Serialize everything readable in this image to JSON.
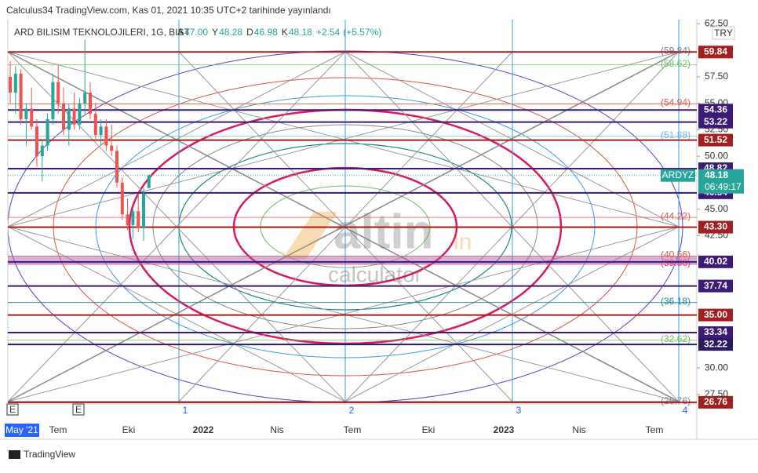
{
  "header": {
    "publisher": "Calculus34 TradingView.com, Kas 01, 2021 10:35 UTC+2 tarihinde yayınlandı"
  },
  "chart_data": {
    "type": "candlestick",
    "symbol": "ARD BILISIM TEKNOLOJILERI, 1G, BIST",
    "ohlc": [
      {
        "key": "A",
        "value": 47,
        "label": "47.00"
      },
      {
        "key": "Y",
        "value": 48.28,
        "label": "48.28"
      },
      {
        "key": "D",
        "value": 46.98,
        "label": "46.98"
      },
      {
        "key": "K",
        "value": 48.18,
        "label": "48.18"
      }
    ],
    "change": {
      "value": 2.54,
      "label": "+2.54"
    },
    "change_pct": {
      "value": 5.57,
      "label": "(+5.57%)"
    },
    "currency": "TRY",
    "ylim": [
      26.6,
      62.9
    ],
    "yticks": [
      {
        "value": 62.5,
        "label": "62.50"
      },
      {
        "value": 57.5,
        "label": "57.50"
      },
      {
        "value": 55,
        "label": "55.00"
      },
      {
        "value": 52.5,
        "label": "52.50"
      },
      {
        "value": 50,
        "label": "50.00"
      },
      {
        "value": 45,
        "label": "45.00"
      },
      {
        "value": 42.5,
        "label": "42.50"
      },
      {
        "value": 30,
        "label": "30.00"
      },
      {
        "value": 27.5,
        "label": "27.50"
      }
    ],
    "x_labels": [
      "May '21",
      "Tem",
      "Eki",
      "2022",
      "Nis",
      "Tem",
      "Eki",
      "2023",
      "Nis",
      "Tem"
    ],
    "event_markers": [
      "E",
      "E"
    ],
    "cycle_labels": [
      "1",
      "2",
      "3",
      "4"
    ],
    "up_color": "#26a69a",
    "down_color": "#ef5350",
    "candles": [
      [
        57.5,
        59,
        55,
        56
      ],
      [
        56,
        58.5,
        54,
        57.8
      ],
      [
        57.8,
        58.2,
        53,
        53.5
      ],
      [
        53.5,
        55,
        51,
        54.5
      ],
      [
        54.5,
        56.5,
        52.5,
        52.8
      ],
      [
        52.8,
        53.5,
        49,
        50
      ],
      [
        50,
        51.5,
        47.6,
        51
      ],
      [
        51,
        54,
        50.5,
        53.5
      ],
      [
        53.5,
        57.8,
        53,
        57
      ],
      [
        57,
        58.6,
        54,
        55
      ],
      [
        55,
        56.5,
        52,
        52.5
      ],
      [
        52.5,
        55,
        51,
        54.5
      ],
      [
        54.5,
        56,
        52.5,
        53
      ],
      [
        53,
        55.5,
        52.5,
        55
      ],
      [
        55,
        61,
        54,
        56
      ],
      [
        56,
        57,
        53.5,
        54
      ],
      [
        54,
        55,
        51.5,
        52
      ],
      [
        52,
        53.5,
        51,
        52.8
      ],
      [
        52.8,
        53.5,
        50.5,
        51
      ],
      [
        51,
        53,
        50,
        50.5
      ],
      [
        50.5,
        51,
        47,
        47.5
      ],
      [
        47.5,
        48,
        44,
        44.5
      ],
      [
        44.5,
        46,
        43,
        43.5
      ],
      [
        43.5,
        45,
        42.2,
        44.8
      ],
      [
        44.8,
        46.5,
        42.8,
        43.2
      ],
      [
        43.2,
        47,
        42,
        46.5
      ],
      [
        47,
        48.28,
        46.98,
        48.18
      ]
    ],
    "levels": [
      {
        "value": 59.84,
        "label": "59.84",
        "color": "#a31f1f"
      },
      {
        "value": 54.36,
        "label": "54.36",
        "color": "#3d1a78"
      },
      {
        "value": 53.22,
        "label": "53.22",
        "color": "#3d1a78"
      },
      {
        "value": 51.52,
        "label": "51.52",
        "color": "#a31f1f"
      },
      {
        "value": 48.82,
        "label": "48.82",
        "color": "#3d1a78"
      },
      {
        "value": 46.54,
        "label": "46.54",
        "color": "#3d1a78"
      },
      {
        "value": 43.3,
        "label": "43.30",
        "color": "#a31f1f"
      },
      {
        "value": 40.02,
        "label": "40.02",
        "color": "#3d1a78"
      },
      {
        "value": 37.74,
        "label": "37.74",
        "color": "#3d1a78"
      },
      {
        "value": 35,
        "label": "35.00",
        "color": "#a31f1f"
      },
      {
        "value": 33.34,
        "label": "33.34",
        "color": "#3d1a78"
      },
      {
        "value": 32.22,
        "label": "32.22",
        "color": "#2a1a5e"
      },
      {
        "value": 26.76,
        "label": "26.76",
        "color": "#a31f1f"
      }
    ],
    "fib_labels": [
      {
        "value": 59.84,
        "label": "(59.84)",
        "color": "#6b7fa3"
      },
      {
        "value": 58.62,
        "label": "(58.62)",
        "color": "#6fbf5f"
      },
      {
        "value": 54.94,
        "label": "(54.94)",
        "color": "#e05a4a"
      },
      {
        "value": 51.88,
        "label": "(51.88)",
        "color": "#6fb6e8"
      },
      {
        "value": 44.22,
        "label": "(44.22)",
        "color": "#e05a4a"
      },
      {
        "value": 40.56,
        "label": "(40.56)",
        "color": "#e05a4a"
      },
      {
        "value": 39.8,
        "label": "(39.80)",
        "color": "#e0407a"
      },
      {
        "value": 36.18,
        "label": "(36.18)",
        "color": "#1e8a8a"
      },
      {
        "value": 32.62,
        "label": "(32.62)",
        "color": "#6fbf5f"
      },
      {
        "value": 26.76,
        "label": "(26.76)",
        "color": "#808080"
      }
    ],
    "band": {
      "from": 39.8,
      "to": 40.56,
      "color": "#9b59b6"
    },
    "last_price": {
      "ticker": "ARDYZ",
      "value": 48.18,
      "label": "48.18",
      "countdown": "06:49:17",
      "color": "#26a69a"
    }
  },
  "watermark": {
    "brand": "altin",
    "suffix": "in",
    "sub": "calculator"
  },
  "footer": {
    "brand": "TradingView"
  }
}
